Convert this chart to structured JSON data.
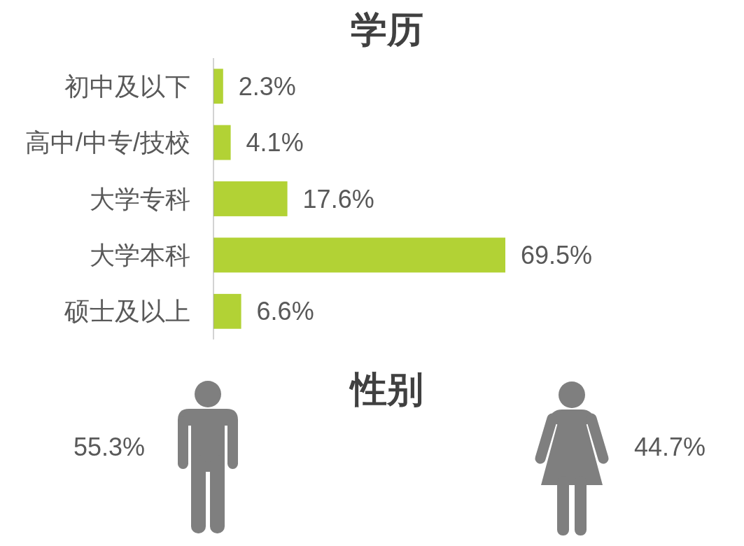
{
  "chart_data": [
    {
      "type": "bar",
      "orientation": "horizontal",
      "title": "学历",
      "categories": [
        "初中及以下",
        "高中/中专/技校",
        "大学专科",
        "大学本科",
        "硕士及以上"
      ],
      "values": [
        2.3,
        4.1,
        17.6,
        69.5,
        6.6
      ],
      "value_labels": [
        "2.3%",
        "4.1%",
        "17.6%",
        "69.5%",
        "6.6%"
      ],
      "color": "#b2d235"
    },
    {
      "type": "other",
      "title": "性别",
      "values": [
        55.3,
        44.7
      ],
      "value_labels": [
        "55.3%",
        "44.7%"
      ],
      "colors": [
        "#7f7f7f",
        "#7f7f7f"
      ]
    }
  ]
}
